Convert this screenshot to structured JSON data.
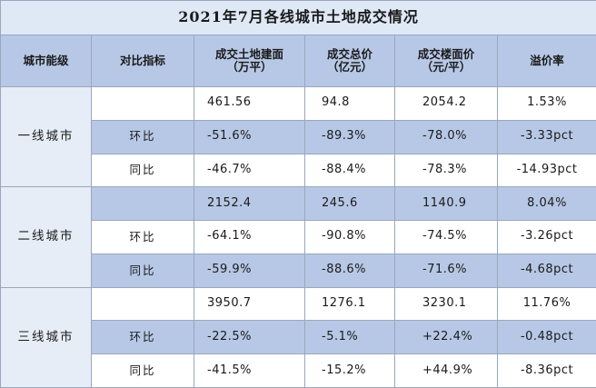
{
  "title": "2021年7月各线城市土地成交情况",
  "headers": {
    "tier": "城市能级",
    "metric": "对比指标",
    "land_area_l1": "成交土地建面",
    "land_area_l2": "（万平）",
    "total_price_l1": "成交总价",
    "total_price_l2": "（亿元）",
    "floor_price_l1": "成交楼面价",
    "floor_price_l2": "（元/平）",
    "premium": "溢价率"
  },
  "groups": [
    {
      "tier": "一线城市",
      "rows": [
        {
          "metric": "",
          "land_area": "461.56",
          "total_price": "94.8",
          "floor_price": "2054.2",
          "premium": "1.53%"
        },
        {
          "metric": "环比",
          "land_area": "-51.6%",
          "total_price": "-89.3%",
          "floor_price": "-78.0%",
          "premium": "-3.33pct"
        },
        {
          "metric": "同比",
          "land_area": "-46.7%",
          "total_price": "-88.4%",
          "floor_price": "-78.3%",
          "premium": "-14.93pct"
        }
      ]
    },
    {
      "tier": "二线城市",
      "rows": [
        {
          "metric": "",
          "land_area": "2152.4",
          "total_price": "245.6",
          "floor_price": "1140.9",
          "premium": "8.04%"
        },
        {
          "metric": "环比",
          "land_area": "-64.1%",
          "total_price": "-90.8%",
          "floor_price": "-74.5%",
          "premium": "-3.26pct"
        },
        {
          "metric": "同比",
          "land_area": "-59.9%",
          "total_price": "-88.6%",
          "floor_price": "-71.6%",
          "premium": "-4.68pct"
        }
      ]
    },
    {
      "tier": "三线城市",
      "rows": [
        {
          "metric": "",
          "land_area": "3950.7",
          "total_price": "1276.1",
          "floor_price": "3230.1",
          "premium": "11.76%"
        },
        {
          "metric": "环比",
          "land_area": "-22.5%",
          "total_price": "-5.1%",
          "floor_price": "+22.4%",
          "premium": "-0.48pct"
        },
        {
          "metric": "同比",
          "land_area": "-41.5%",
          "total_price": "-15.2%",
          "floor_price": "+44.9%",
          "premium": "-8.36pct"
        }
      ]
    }
  ]
}
